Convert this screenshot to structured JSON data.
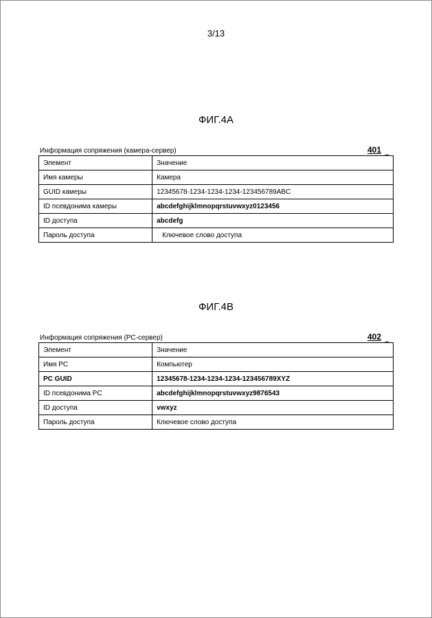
{
  "page_number": "3/13",
  "figA": {
    "title": "ФИГ.4A",
    "caption": "Информация сопряжения (камера-сервер)",
    "ref": "401",
    "header": {
      "element": "Элемент",
      "value": "Значение"
    },
    "rows": [
      {
        "element": "Имя камеры",
        "value": "Камера"
      },
      {
        "element": "GUID камеры",
        "value": "12345678-1234-1234-1234-123456789ABC"
      },
      {
        "element": "ID псевдонима камеры",
        "value": "abcdefghijklmnopqrstuvwxyz0123456"
      },
      {
        "element": "ID доступа",
        "value": "abcdefg"
      },
      {
        "element": "Пароль доступа",
        "value": "Ключевое слово доступа"
      }
    ]
  },
  "figB": {
    "title": "ФИГ.4B",
    "caption": "Информация сопряжения (PC-сервер)",
    "ref": "402",
    "header": {
      "element": "Элемент",
      "value": "Значение"
    },
    "rows": [
      {
        "element": "Имя PC",
        "value": "Компьютер"
      },
      {
        "element": "PC GUID",
        "value": "12345678-1234-1234-1234-123456789XYZ"
      },
      {
        "element": "ID псевдонима PC",
        "value": "abcdefghijklmnopqrstuvwxyz9876543"
      },
      {
        "element": "ID доступа",
        "value": "vwxyz"
      },
      {
        "element": "Пароль доступа",
        "value": "Ключевое слово доступа"
      }
    ]
  }
}
